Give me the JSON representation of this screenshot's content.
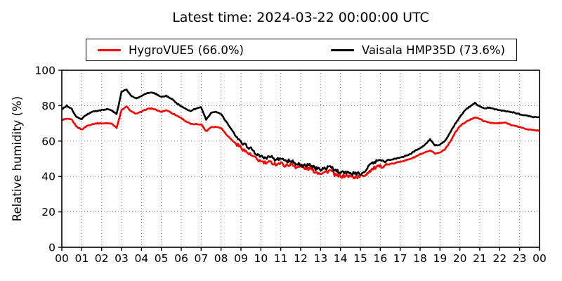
{
  "chart_data": {
    "type": "line",
    "title": "Latest time: 2024-03-22 00:00:00 UTC",
    "xlabel": "",
    "ylabel": "Relative humidity (%)",
    "xlim": [
      0,
      24
    ],
    "ylim": [
      0,
      100
    ],
    "x_unit": "hour of day (UTC)",
    "x_tick_labels": [
      "00",
      "01",
      "02",
      "03",
      "04",
      "05",
      "06",
      "07",
      "08",
      "09",
      "10",
      "11",
      "12",
      "13",
      "14",
      "15",
      "16",
      "17",
      "18",
      "19",
      "20",
      "21",
      "22",
      "23",
      "00"
    ],
    "y_ticks": [
      0,
      20,
      40,
      60,
      80,
      100
    ],
    "grid": true,
    "legend_position": "top-center",
    "x": [
      0,
      0.25,
      0.5,
      0.75,
      1,
      1.25,
      1.5,
      1.75,
      2,
      2.25,
      2.5,
      2.75,
      3,
      3.25,
      3.5,
      3.75,
      4,
      4.25,
      4.5,
      4.75,
      5,
      5.25,
      5.5,
      5.75,
      6,
      6.25,
      6.5,
      6.75,
      7,
      7.25,
      7.5,
      7.75,
      8,
      8.25,
      8.5,
      8.75,
      9,
      9.25,
      9.5,
      9.75,
      10,
      10.25,
      10.5,
      10.75,
      11,
      11.25,
      11.5,
      11.75,
      12,
      12.25,
      12.5,
      12.75,
      13,
      13.25,
      13.5,
      13.75,
      14,
      14.25,
      14.5,
      14.75,
      15,
      15.25,
      15.5,
      15.75,
      16,
      16.25,
      16.5,
      16.75,
      17,
      17.25,
      17.5,
      17.75,
      18,
      18.25,
      18.5,
      18.75,
      19,
      19.25,
      19.5,
      19.75,
      20,
      20.25,
      20.5,
      20.75,
      21,
      21.25,
      21.5,
      21.75,
      22,
      22.25,
      22.5,
      22.75,
      23,
      23.25,
      23.5,
      23.75,
      24
    ],
    "series": [
      {
        "name": "HygroVUE5 (66.0%)",
        "latest_value": 66.0,
        "color": "#ff0000",
        "values": [
          72,
          72.5,
          72,
          68,
          66.5,
          68.5,
          69.5,
          70,
          70,
          70,
          70,
          67.5,
          77.5,
          79.5,
          76.5,
          75.5,
          76.5,
          78,
          78.5,
          77.5,
          76.5,
          77.5,
          76,
          74.5,
          73,
          71,
          69.5,
          69.5,
          69.5,
          65.5,
          68,
          68,
          67.5,
          64,
          61,
          58.5,
          56.5,
          54,
          52,
          50,
          48.5,
          47.5,
          48,
          47,
          47.5,
          46,
          47,
          45.5,
          45.5,
          44.5,
          44.5,
          42.5,
          42,
          42.5,
          43.5,
          40.5,
          40,
          40.5,
          40,
          39.5,
          40,
          41,
          43.5,
          45,
          45.5,
          46.5,
          47,
          47.5,
          48.5,
          49,
          50,
          51,
          52.5,
          53.5,
          54.5,
          53,
          53.5,
          55.5,
          59.5,
          64.5,
          68.5,
          70.5,
          72,
          73.5,
          72.5,
          71,
          70.5,
          70,
          70,
          70.5,
          69.5,
          68.5,
          68,
          67,
          66.5,
          66,
          66
        ]
      },
      {
        "name": "Vaisala HMP35D (73.6%)",
        "latest_value": 73.6,
        "color": "#000000",
        "values": [
          78,
          80,
          78,
          73.5,
          72.5,
          75,
          76.5,
          77,
          77.5,
          78,
          77.5,
          75,
          88,
          89,
          85.5,
          84,
          85.5,
          87,
          87.5,
          86.5,
          85,
          85.5,
          84,
          81.5,
          79.5,
          78,
          77,
          78.5,
          79,
          72,
          76,
          76.5,
          75.5,
          71,
          67,
          62.5,
          59.5,
          57.5,
          55.5,
          53,
          51.5,
          50,
          51,
          49.5,
          50,
          48.5,
          49.5,
          47.5,
          46.5,
          46,
          46.5,
          44.5,
          44,
          44.5,
          45.5,
          43,
          42.5,
          42.5,
          42,
          41.5,
          41.5,
          43.5,
          46.5,
          48.5,
          48.5,
          49,
          49.5,
          50,
          50.5,
          51.5,
          52.5,
          54.5,
          56,
          58,
          61,
          57.5,
          58,
          60,
          64.5,
          69.5,
          73.5,
          77.5,
          79.5,
          81.5,
          79.5,
          78.5,
          79,
          78,
          77.5,
          77,
          76.5,
          76,
          75,
          74.5,
          74,
          73.5,
          73.6
        ]
      }
    ],
    "style": {
      "line_width": 2.6,
      "grid_color": "#7a7a7a",
      "grid_dash": "1 3",
      "axes_color": "#000000",
      "background": "#ffffff",
      "noise_regions": [
        {
          "from": 8.8,
          "to": 16.3,
          "amp": 1.0
        }
      ],
      "base_noise_amp": 0.25
    }
  }
}
